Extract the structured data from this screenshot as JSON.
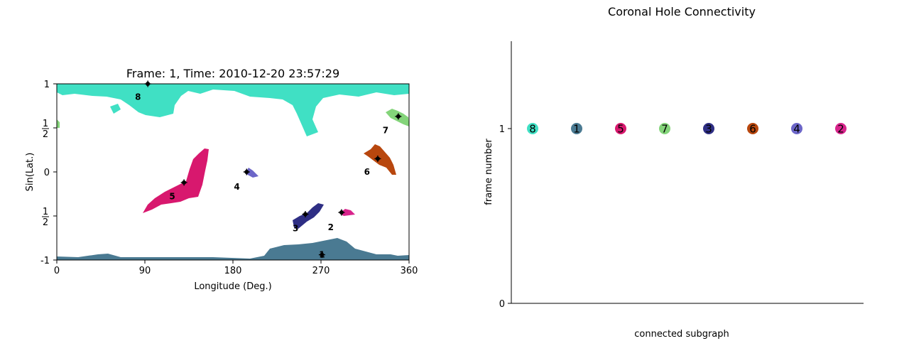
{
  "chart_data": [
    {
      "type": "scatter",
      "title": "Frame: 1, Time: 2010-12-20 23:57:29",
      "xlabel": "Longitude (Deg.)",
      "ylabel": "Sin(Lat.)",
      "xlim": [
        0,
        360
      ],
      "ylim": [
        -1,
        1
      ],
      "xticks": [
        "0",
        "90",
        "180",
        "270",
        "360"
      ],
      "yticks": [
        {
          "value": 1,
          "label": "1",
          "frac": false
        },
        {
          "value": 0.5,
          "label": "1|2",
          "frac": true
        },
        {
          "value": 0,
          "label": "0",
          "frac": false
        },
        {
          "value": -0.5,
          "label": "1|2",
          "frac": true
        },
        {
          "value": -1,
          "label": "-1",
          "frac": false
        }
      ],
      "grid": false,
      "series": [
        {
          "label": "8",
          "color": "#40e0c4",
          "centroid": [
            93,
            1.0
          ],
          "label_pos": [
            83,
            0.85
          ]
        },
        {
          "label": "1",
          "color": "#4a7a92",
          "centroid": [
            271,
            -0.94
          ],
          "label_pos": [
            271,
            -0.94
          ]
        },
        {
          "label": "5",
          "color": "#d8186e",
          "centroid": [
            130,
            -0.12
          ],
          "label_pos": [
            118,
            -0.28
          ]
        },
        {
          "label": "7",
          "color": "#84d47a",
          "centroid": [
            349,
            0.63
          ],
          "label_pos": [
            336,
            0.47
          ]
        },
        {
          "label": "3",
          "color": "#2e2e84",
          "centroid": [
            254,
            -0.48
          ],
          "label_pos": [
            244,
            -0.64
          ]
        },
        {
          "label": "6",
          "color": "#b8470e",
          "centroid": [
            328,
            0.15
          ],
          "label_pos": [
            317,
            0.0
          ]
        },
        {
          "label": "4",
          "color": "#6c66c8",
          "centroid": [
            194,
            0.0
          ],
          "label_pos": [
            184,
            -0.17
          ]
        },
        {
          "label": "2",
          "color": "#d8248c",
          "centroid": [
            291,
            -0.46
          ],
          "label_pos": [
            280,
            -0.63
          ]
        }
      ]
    },
    {
      "type": "scatter",
      "title": "Coronal Hole Connectivity",
      "xlabel": "connected subgraph",
      "ylabel": "frame number",
      "ylim": [
        0,
        1.5
      ],
      "yticks": [
        "0",
        "1"
      ],
      "grid": false,
      "points": [
        {
          "label": "8",
          "x": 0,
          "y": 1,
          "color": "#40e0c4"
        },
        {
          "label": "1",
          "x": 1,
          "y": 1,
          "color": "#4a7a92"
        },
        {
          "label": "5",
          "x": 2,
          "y": 1,
          "color": "#d8186e"
        },
        {
          "label": "7",
          "x": 3,
          "y": 1,
          "color": "#84d47a"
        },
        {
          "label": "3",
          "x": 4,
          "y": 1,
          "color": "#2e2e84"
        },
        {
          "label": "6",
          "x": 5,
          "y": 1,
          "color": "#b8470e"
        },
        {
          "label": "4",
          "x": 6,
          "y": 1,
          "color": "#6c66c8"
        },
        {
          "label": "2",
          "x": 7,
          "y": 1,
          "color": "#d8248c"
        }
      ]
    }
  ]
}
